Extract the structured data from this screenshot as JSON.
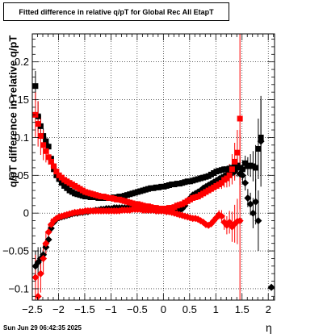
{
  "chart_data": {
    "type": "scatter",
    "title": "Fitted difference in relative q/pT for Global Rec All EtapT",
    "xlabel": "η",
    "ylabel": "q/pT difference in relative q/pT",
    "xlim": [
      -2.5,
      2.12
    ],
    "ylim": [
      -0.115,
      0.237
    ],
    "grid": true,
    "legend": "none",
    "x_ticks": [
      -2.5,
      -2,
      -1.5,
      -1,
      -0.5,
      0,
      0.5,
      1,
      1.5,
      2
    ],
    "x_tick_labels": [
      "−2.5",
      "−2",
      "−1.5",
      "−1",
      "−0.5",
      "0",
      "0.5",
      "1",
      "1.5",
      "2"
    ],
    "y_ticks": [
      -0.1,
      -0.05,
      0,
      0.05,
      0.1,
      0.15,
      0.2
    ],
    "y_tick_labels": [
      "−0.1",
      "−0.05",
      "0",
      "0.05",
      "0.1",
      "0.15",
      "0.2"
    ],
    "series": [
      {
        "color": "#000000",
        "marker": "square",
        "x": [
          -2.44,
          -2.39,
          -2.34,
          -2.29,
          -2.24,
          -2.19,
          -2.14,
          -2.09,
          -2.04,
          -1.99,
          -1.94,
          -1.89,
          -1.84,
          -1.79,
          -1.74,
          -1.69,
          -1.64,
          -1.59,
          -1.54,
          -1.49,
          -1.44,
          -1.39,
          -1.34,
          -1.29,
          -1.24,
          -1.19,
          -1.14,
          -1.09,
          -1.04,
          -0.99,
          -0.94,
          -0.89,
          -0.84,
          -0.79,
          -0.74,
          -0.69,
          -0.64,
          -0.59,
          -0.54,
          -0.49,
          -0.44,
          -0.39,
          -0.34,
          -0.29,
          -0.24,
          -0.19,
          -0.14,
          -0.09,
          -0.04,
          0.01,
          0.06,
          0.11,
          0.16,
          0.21,
          0.26,
          0.31,
          0.36,
          0.41,
          0.46,
          0.51,
          0.56,
          0.61,
          0.66,
          0.71,
          0.76,
          0.81,
          0.86,
          0.91,
          0.96,
          1.01,
          1.06,
          1.11,
          1.16,
          1.21,
          1.26,
          1.31,
          1.36,
          1.41,
          1.46,
          1.51,
          1.56,
          1.61,
          1.66,
          1.71,
          1.76,
          1.81,
          1.86
        ],
        "y": [
          0.168,
          0.128,
          0.115,
          0.102,
          0.095,
          0.088,
          0.072,
          0.058,
          0.05,
          0.045,
          0.04,
          0.036,
          0.033,
          0.03,
          0.028,
          0.026,
          0.025,
          0.024,
          0.023,
          0.022,
          0.022,
          0.021,
          0.021,
          0.021,
          0.02,
          0.02,
          0.02,
          0.02,
          0.02,
          0.02,
          0.021,
          0.021,
          0.022,
          0.022,
          0.023,
          0.024,
          0.025,
          0.026,
          0.027,
          0.028,
          0.029,
          0.03,
          0.031,
          0.032,
          0.033,
          0.033,
          0.034,
          0.034,
          0.035,
          0.035,
          0.036,
          0.037,
          0.038,
          0.038,
          0.039,
          0.039,
          0.04,
          0.041,
          0.042,
          0.042,
          0.043,
          0.044,
          0.045,
          0.046,
          0.047,
          0.048,
          0.049,
          0.051,
          0.053,
          0.055,
          0.056,
          0.057,
          0.058,
          0.058,
          0.059,
          0.06,
          0.062,
          0.063,
          0.06,
          0.058,
          0.066,
          0.062,
          0.063,
          0.062,
          0.06,
          0.085,
          0.1
        ],
        "yerr": [
          0.02,
          0.02,
          0.015,
          0.01,
          0.006,
          0.005,
          0.004,
          0.003,
          0.003,
          0.002,
          0.002,
          0.002,
          0.002,
          0.002,
          0.002,
          0.002,
          0.002,
          0.002,
          0.002,
          0.002,
          0.002,
          0.002,
          0.002,
          0.002,
          0.002,
          0.002,
          0.002,
          0.002,
          0.002,
          0.002,
          0.002,
          0.002,
          0.002,
          0.002,
          0.002,
          0.002,
          0.002,
          0.002,
          0.002,
          0.002,
          0.002,
          0.002,
          0.002,
          0.002,
          0.002,
          0.002,
          0.002,
          0.002,
          0.002,
          0.002,
          0.002,
          0.002,
          0.002,
          0.002,
          0.002,
          0.002,
          0.002,
          0.002,
          0.002,
          0.002,
          0.002,
          0.002,
          0.002,
          0.002,
          0.002,
          0.002,
          0.002,
          0.003,
          0.003,
          0.003,
          0.003,
          0.004,
          0.004,
          0.004,
          0.005,
          0.006,
          0.008,
          0.012,
          0.015,
          0.012,
          0.01,
          0.012,
          0.015,
          0.02,
          0.03,
          0.04,
          0.05
        ]
      },
      {
        "color": "#000000",
        "marker": "diamond",
        "x": [
          -2.44,
          -2.39,
          -2.34,
          -2.29,
          -2.24,
          -2.19,
          -2.14,
          -2.09,
          -2.04,
          -1.99,
          -1.94,
          -1.89,
          -1.84,
          -1.79,
          -1.74,
          -1.69,
          -1.64,
          -1.59,
          -1.54,
          -1.49,
          -1.44,
          -1.39,
          -1.34,
          -1.29,
          -1.24,
          -1.19,
          -1.14,
          -1.09,
          -1.04,
          -0.99,
          -0.94,
          -0.89,
          -0.84,
          -0.79,
          -0.74,
          -0.69,
          -0.64,
          -0.59,
          -0.54,
          -0.49,
          -0.44,
          -0.39,
          -0.34,
          -0.29,
          -0.24,
          -0.19,
          -0.14,
          -0.09,
          -0.04,
          0.01,
          0.06,
          0.11,
          0.16,
          0.21,
          0.26,
          0.31,
          0.36,
          0.41,
          0.46,
          0.51,
          0.56,
          0.61,
          0.66,
          0.71,
          0.76,
          0.81,
          0.86,
          0.91,
          0.96,
          1.01,
          1.06,
          1.11,
          1.16,
          1.21,
          1.26,
          1.31,
          1.36,
          1.41,
          1.46,
          1.51,
          1.56,
          1.61,
          1.66,
          1.71,
          1.76,
          1.81,
          1.86,
          2.06
        ],
        "y": [
          -0.07,
          -0.065,
          -0.06,
          -0.055,
          -0.045,
          -0.035,
          -0.02,
          -0.012,
          -0.008,
          -0.006,
          -0.005,
          -0.004,
          -0.003,
          -0.002,
          -0.001,
          0.0,
          0.0,
          0.001,
          0.001,
          0.002,
          0.002,
          0.003,
          0.003,
          0.004,
          0.004,
          0.005,
          0.005,
          0.006,
          0.006,
          0.006,
          0.007,
          0.007,
          0.007,
          0.007,
          0.007,
          0.007,
          0.007,
          0.007,
          0.006,
          0.006,
          0.006,
          0.005,
          0.005,
          0.004,
          0.004,
          0.004,
          0.003,
          0.003,
          0.003,
          0.003,
          0.002,
          0.002,
          0.002,
          0.002,
          0.003,
          0.004,
          0.006,
          0.01,
          0.016,
          0.02,
          0.024,
          0.026,
          0.028,
          0.03,
          0.033,
          0.035,
          0.037,
          0.039,
          0.041,
          0.043,
          0.045,
          0.047,
          0.049,
          0.051,
          0.052,
          0.053,
          0.055,
          0.06,
          0.052,
          0.05,
          0.04,
          0.02,
          0.012,
          0.0,
          0.015,
          -0.01,
          0.095,
          -0.098
        ],
        "yerr": [
          0.02,
          0.02,
          0.015,
          0.01,
          0.008,
          0.006,
          0.004,
          0.003,
          0.003,
          0.002,
          0.002,
          0.002,
          0.002,
          0.002,
          0.002,
          0.002,
          0.002,
          0.002,
          0.002,
          0.002,
          0.002,
          0.002,
          0.002,
          0.002,
          0.002,
          0.002,
          0.002,
          0.002,
          0.002,
          0.002,
          0.002,
          0.002,
          0.002,
          0.002,
          0.002,
          0.002,
          0.002,
          0.002,
          0.002,
          0.002,
          0.002,
          0.002,
          0.002,
          0.002,
          0.002,
          0.002,
          0.002,
          0.002,
          0.002,
          0.002,
          0.002,
          0.002,
          0.002,
          0.002,
          0.002,
          0.002,
          0.002,
          0.002,
          0.002,
          0.002,
          0.002,
          0.002,
          0.002,
          0.002,
          0.002,
          0.002,
          0.002,
          0.003,
          0.003,
          0.003,
          0.003,
          0.004,
          0.004,
          0.004,
          0.005,
          0.006,
          0.008,
          0.012,
          0.015,
          0.012,
          0.01,
          0.012,
          0.015,
          0.02,
          0.03,
          0.04,
          0.06,
          0.0
        ]
      },
      {
        "color": "#ff0000",
        "marker": "square",
        "x": [
          -2.44,
          -2.39,
          -2.34,
          -2.29,
          -2.24,
          -2.19,
          -2.14,
          -2.09,
          -2.04,
          -1.99,
          -1.94,
          -1.89,
          -1.84,
          -1.79,
          -1.74,
          -1.69,
          -1.64,
          -1.59,
          -1.54,
          -1.49,
          -1.44,
          -1.39,
          -1.34,
          -1.29,
          -1.24,
          -1.19,
          -1.14,
          -1.09,
          -1.04,
          -0.99,
          -0.94,
          -0.89,
          -0.84,
          -0.79,
          -0.74,
          -0.69,
          -0.64,
          -0.59,
          -0.54,
          -0.49,
          -0.44,
          -0.39,
          -0.34,
          -0.29,
          -0.24,
          -0.19,
          -0.14,
          -0.09,
          -0.04,
          0.01,
          0.06,
          0.11,
          0.16,
          0.21,
          0.26,
          0.31,
          0.36,
          0.41,
          0.46,
          0.51,
          0.56,
          0.61,
          0.66,
          0.71,
          0.76,
          0.81,
          0.86,
          0.91,
          0.96,
          1.01,
          1.06,
          1.11,
          1.16,
          1.21,
          1.26,
          1.31,
          1.36,
          1.41,
          1.46
        ],
        "y": [
          0.13,
          0.118,
          0.102,
          0.09,
          0.082,
          0.074,
          0.068,
          0.062,
          0.055,
          0.05,
          0.047,
          0.044,
          0.042,
          0.04,
          0.038,
          0.036,
          0.034,
          0.032,
          0.03,
          0.028,
          0.027,
          0.026,
          0.025,
          0.024,
          0.023,
          0.022,
          0.022,
          0.021,
          0.02,
          0.02,
          0.019,
          0.018,
          0.018,
          0.017,
          0.016,
          0.015,
          0.014,
          0.013,
          0.012,
          0.012,
          0.011,
          0.01,
          0.009,
          0.009,
          0.008,
          0.007,
          0.007,
          0.006,
          0.006,
          0.006,
          0.006,
          0.007,
          0.007,
          0.008,
          0.01,
          0.011,
          0.012,
          0.014,
          0.016,
          0.018,
          0.02,
          0.021,
          0.022,
          0.024,
          0.026,
          0.028,
          0.03,
          0.032,
          0.034,
          0.036,
          0.038,
          0.04,
          0.044,
          0.046,
          0.05,
          0.058,
          0.068,
          0.08,
          0.125
        ],
        "yerr": [
          0.03,
          0.03,
          0.025,
          0.02,
          0.015,
          0.01,
          0.008,
          0.005,
          0.004,
          0.003,
          0.003,
          0.003,
          0.002,
          0.002,
          0.002,
          0.002,
          0.002,
          0.002,
          0.002,
          0.002,
          0.002,
          0.002,
          0.002,
          0.002,
          0.002,
          0.002,
          0.002,
          0.002,
          0.002,
          0.002,
          0.002,
          0.002,
          0.002,
          0.002,
          0.002,
          0.002,
          0.002,
          0.002,
          0.002,
          0.002,
          0.002,
          0.002,
          0.002,
          0.002,
          0.002,
          0.002,
          0.002,
          0.002,
          0.002,
          0.002,
          0.002,
          0.002,
          0.002,
          0.002,
          0.002,
          0.002,
          0.002,
          0.002,
          0.002,
          0.002,
          0.002,
          0.002,
          0.002,
          0.002,
          0.002,
          0.003,
          0.003,
          0.004,
          0.004,
          0.005,
          0.006,
          0.008,
          0.01,
          0.012,
          0.015,
          0.02,
          0.025,
          0.03,
          0.12
        ]
      },
      {
        "color": "#ff0000",
        "marker": "diamond",
        "x": [
          -2.44,
          -2.39,
          -2.34,
          -2.29,
          -2.24,
          -2.19,
          -2.14,
          -2.09,
          -2.04,
          -1.99,
          -1.94,
          -1.89,
          -1.84,
          -1.79,
          -1.74,
          -1.69,
          -1.64,
          -1.59,
          -1.54,
          -1.49,
          -1.44,
          -1.39,
          -1.34,
          -1.29,
          -1.24,
          -1.19,
          -1.14,
          -1.09,
          -1.04,
          -0.99,
          -0.94,
          -0.89,
          -0.84,
          -0.79,
          -0.74,
          -0.69,
          -0.64,
          -0.59,
          -0.54,
          -0.49,
          -0.44,
          -0.39,
          -0.34,
          -0.29,
          -0.24,
          -0.19,
          -0.14,
          -0.09,
          -0.04,
          0.01,
          0.06,
          0.11,
          0.16,
          0.21,
          0.26,
          0.31,
          0.36,
          0.41,
          0.46,
          0.51,
          0.56,
          0.61,
          0.66,
          0.71,
          0.76,
          0.81,
          0.86,
          0.91,
          0.96,
          1.01,
          1.06,
          1.11,
          1.16,
          1.21,
          1.26,
          1.31,
          1.36,
          1.41,
          1.46
        ],
        "y": [
          -0.085,
          -0.11,
          -0.08,
          -0.06,
          -0.04,
          -0.025,
          -0.015,
          -0.01,
          -0.007,
          -0.005,
          -0.004,
          -0.003,
          -0.002,
          -0.001,
          0.0,
          0.001,
          0.001,
          0.002,
          0.002,
          0.003,
          0.003,
          0.003,
          0.003,
          0.003,
          0.003,
          0.003,
          0.003,
          0.003,
          0.003,
          0.003,
          0.003,
          0.003,
          0.003,
          0.004,
          0.004,
          0.004,
          0.004,
          0.005,
          0.005,
          0.005,
          0.005,
          0.004,
          0.004,
          0.004,
          0.004,
          0.004,
          0.003,
          0.003,
          0.003,
          0.003,
          0.002,
          0.002,
          0.001,
          0.0,
          -0.001,
          -0.002,
          -0.003,
          -0.004,
          -0.005,
          -0.006,
          -0.007,
          -0.007,
          -0.008,
          -0.01,
          -0.012,
          -0.015,
          -0.016,
          -0.014,
          -0.01,
          -0.006,
          -0.002,
          -0.004,
          -0.012,
          -0.016,
          -0.012,
          -0.018,
          -0.014,
          -0.011,
          -0.01
        ],
        "yerr": [
          0.03,
          0.03,
          0.025,
          0.02,
          0.015,
          0.01,
          0.008,
          0.005,
          0.004,
          0.003,
          0.003,
          0.003,
          0.002,
          0.002,
          0.002,
          0.002,
          0.002,
          0.002,
          0.002,
          0.002,
          0.002,
          0.002,
          0.002,
          0.002,
          0.002,
          0.002,
          0.002,
          0.002,
          0.002,
          0.002,
          0.002,
          0.002,
          0.002,
          0.002,
          0.002,
          0.002,
          0.002,
          0.002,
          0.002,
          0.002,
          0.002,
          0.002,
          0.002,
          0.002,
          0.002,
          0.002,
          0.002,
          0.002,
          0.002,
          0.002,
          0.002,
          0.002,
          0.002,
          0.002,
          0.002,
          0.002,
          0.002,
          0.002,
          0.002,
          0.002,
          0.002,
          0.002,
          0.002,
          0.002,
          0.002,
          0.003,
          0.003,
          0.004,
          0.004,
          0.005,
          0.006,
          0.008,
          0.01,
          0.012,
          0.015,
          0.02,
          0.025,
          0.03,
          0.12
        ]
      }
    ]
  },
  "footer": {
    "timestamp": "Sun Jun 29 06:42:35 2025"
  }
}
